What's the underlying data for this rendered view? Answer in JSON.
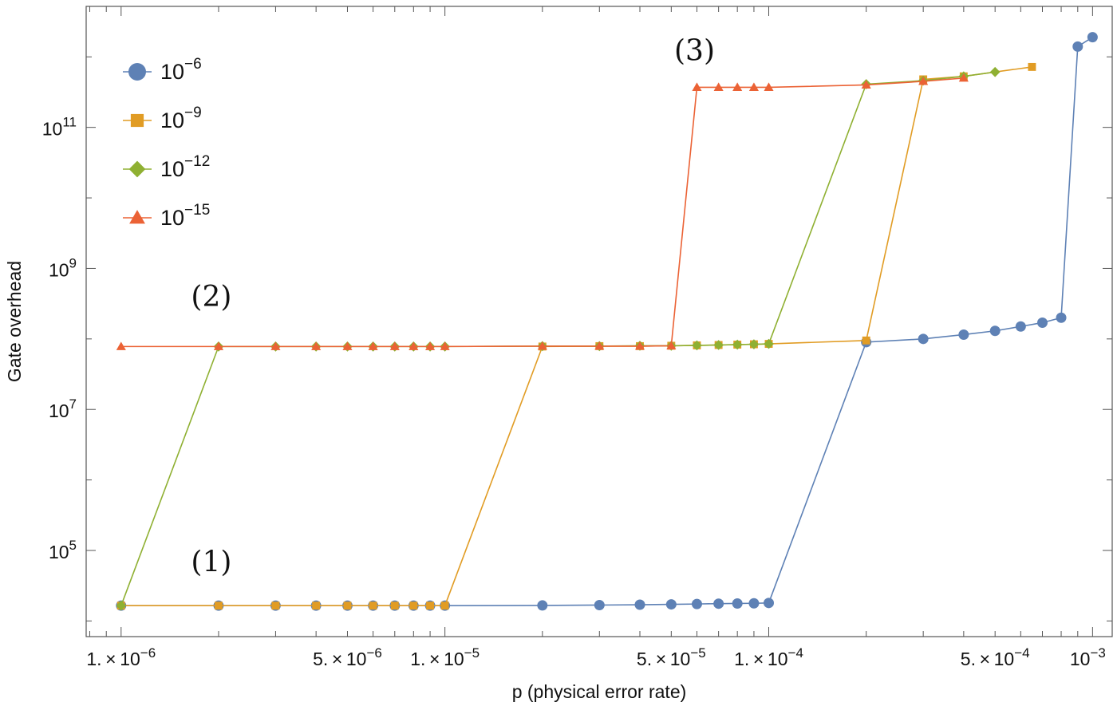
{
  "chart_data": {
    "type": "line",
    "title": "",
    "xlabel": "p (physical error rate)",
    "ylabel": "Gate overhead",
    "xscale": "log",
    "yscale": "log",
    "xlim": [
      7.8e-07,
      0.00115
    ],
    "ylim": [
      6000.0,
      5200000000000.0
    ],
    "grid": false,
    "legend_position": "top-left",
    "x_ticks": [
      {
        "value": 1e-06,
        "base": "1.",
        "exp": "-6"
      },
      {
        "value": 5e-06,
        "base": "5.",
        "exp": "-6"
      },
      {
        "value": 1e-05,
        "base": "1.",
        "exp": "-5"
      },
      {
        "value": 5e-05,
        "base": "5.",
        "exp": "-5"
      },
      {
        "value": 0.0001,
        "base": "1.",
        "exp": "-4"
      },
      {
        "value": 0.0005,
        "base": "5.",
        "exp": "-4"
      },
      {
        "value": 0.001,
        "base": "",
        "exp": "-3"
      }
    ],
    "y_ticks": [
      {
        "value": 100000.0,
        "exp": "5"
      },
      {
        "value": 10000000.0,
        "exp": "7"
      },
      {
        "value": 1000000000.0,
        "exp": "9"
      },
      {
        "value": 100000000000.0,
        "exp": "11"
      }
    ],
    "annotations": [
      {
        "text": "(1)",
        "x": 1.9e-06,
        "y": 50000.0
      },
      {
        "text": "(2)",
        "x": 1.9e-06,
        "y": 290000000.0
      },
      {
        "text": "(3)",
        "x": 5.9e-05,
        "y": 900000000000.0
      }
    ],
    "series": [
      {
        "name": "10^-6",
        "base": "10",
        "exp": "−6",
        "color": "#5e81b5",
        "marker": "circle",
        "points": [
          [
            1e-06,
            16500.0
          ],
          [
            2e-06,
            16500.0
          ],
          [
            3e-06,
            16500.0
          ],
          [
            4e-06,
            16500.0
          ],
          [
            5e-06,
            16500.0
          ],
          [
            6e-06,
            16500.0
          ],
          [
            7e-06,
            16500.0
          ],
          [
            8e-06,
            16500.0
          ],
          [
            9e-06,
            16500.0
          ],
          [
            1e-05,
            16500.0
          ],
          [
            2e-05,
            16600.0
          ],
          [
            3e-05,
            16800.0
          ],
          [
            4e-05,
            17000.0
          ],
          [
            5e-05,
            17200.0
          ],
          [
            6e-05,
            17400.0
          ],
          [
            7e-05,
            17600.0
          ],
          [
            8e-05,
            17700.0
          ],
          [
            9e-05,
            17800.0
          ],
          [
            0.0001,
            18000.0
          ],
          [
            0.0002,
            90000000.0
          ],
          [
            0.0003,
            100000000.0
          ],
          [
            0.0004,
            115000000.0
          ],
          [
            0.0005,
            130000000.0
          ],
          [
            0.0006,
            150000000.0
          ],
          [
            0.0007,
            170000000.0
          ],
          [
            0.0008,
            200000000.0
          ],
          [
            0.0009,
            1400000000000.0
          ],
          [
            0.001,
            1900000000000.0
          ]
        ]
      },
      {
        "name": "10^-9",
        "base": "10",
        "exp": "−9",
        "color": "#e19c24",
        "marker": "square",
        "points": [
          [
            1e-06,
            16500.0
          ],
          [
            2e-06,
            16500.0
          ],
          [
            3e-06,
            16500.0
          ],
          [
            4e-06,
            16500.0
          ],
          [
            5e-06,
            16500.0
          ],
          [
            6e-06,
            16500.0
          ],
          [
            7e-06,
            16500.0
          ],
          [
            8e-06,
            16500.0
          ],
          [
            9e-06,
            16500.0
          ],
          [
            1e-05,
            16500.0
          ],
          [
            2e-05,
            78000000.0
          ],
          [
            3e-05,
            79000000.0
          ],
          [
            4e-05,
            79000000.0
          ],
          [
            5e-05,
            80000000.0
          ],
          [
            6e-05,
            81000000.0
          ],
          [
            7e-05,
            82000000.0
          ],
          [
            8e-05,
            83000000.0
          ],
          [
            9e-05,
            84000000.0
          ],
          [
            0.0001,
            85000000.0
          ],
          [
            0.0002,
            95000000.0
          ],
          [
            0.0003,
            480000000000.0
          ],
          [
            0.0004,
            530000000000.0
          ],
          [
            0.00065,
            720000000000.0
          ]
        ]
      },
      {
        "name": "10^-12",
        "base": "10",
        "exp": "−12",
        "color": "#8fb032",
        "marker": "diamond",
        "points": [
          [
            1e-06,
            16500.0
          ],
          [
            2e-06,
            78000000.0
          ],
          [
            3e-06,
            78000000.0
          ],
          [
            4e-06,
            78000000.0
          ],
          [
            5e-06,
            78000000.0
          ],
          [
            6e-06,
            78000000.0
          ],
          [
            7e-06,
            78000000.0
          ],
          [
            8e-06,
            78000000.0
          ],
          [
            9e-06,
            78000000.0
          ],
          [
            1e-05,
            78000000.0
          ],
          [
            2e-05,
            79000000.0
          ],
          [
            3e-05,
            79000000.0
          ],
          [
            4e-05,
            80000000.0
          ],
          [
            5e-05,
            80000000.0
          ],
          [
            6e-05,
            81000000.0
          ],
          [
            7e-05,
            82000000.0
          ],
          [
            8e-05,
            83000000.0
          ],
          [
            9e-05,
            84000000.0
          ],
          [
            0.0001,
            85000000.0
          ],
          [
            0.0002,
            410000000000.0
          ],
          [
            0.0003,
            460000000000.0
          ],
          [
            0.0004,
            530000000000.0
          ],
          [
            0.0005,
            610000000000.0
          ]
        ]
      },
      {
        "name": "10^-15",
        "base": "10",
        "exp": "−15",
        "color": "#eb6235",
        "marker": "triangle",
        "points": [
          [
            1e-06,
            78000000.0
          ],
          [
            2e-06,
            78000000.0
          ],
          [
            3e-06,
            78000000.0
          ],
          [
            4e-06,
            78000000.0
          ],
          [
            5e-06,
            78000000.0
          ],
          [
            6e-06,
            78000000.0
          ],
          [
            7e-06,
            78000000.0
          ],
          [
            8e-06,
            78000000.0
          ],
          [
            9e-06,
            78000000.0
          ],
          [
            1e-05,
            78000000.0
          ],
          [
            2e-05,
            79000000.0
          ],
          [
            3e-05,
            79000000.0
          ],
          [
            4e-05,
            79000000.0
          ],
          [
            5e-05,
            80000000.0
          ],
          [
            6e-05,
            370000000000.0
          ],
          [
            7e-05,
            370000000000.0
          ],
          [
            8e-05,
            370000000000.0
          ],
          [
            9e-05,
            370000000000.0
          ],
          [
            0.0001,
            370000000000.0
          ],
          [
            0.0002,
            400000000000.0
          ],
          [
            0.0003,
            450000000000.0
          ],
          [
            0.0004,
            500000000000.0
          ]
        ]
      }
    ]
  }
}
